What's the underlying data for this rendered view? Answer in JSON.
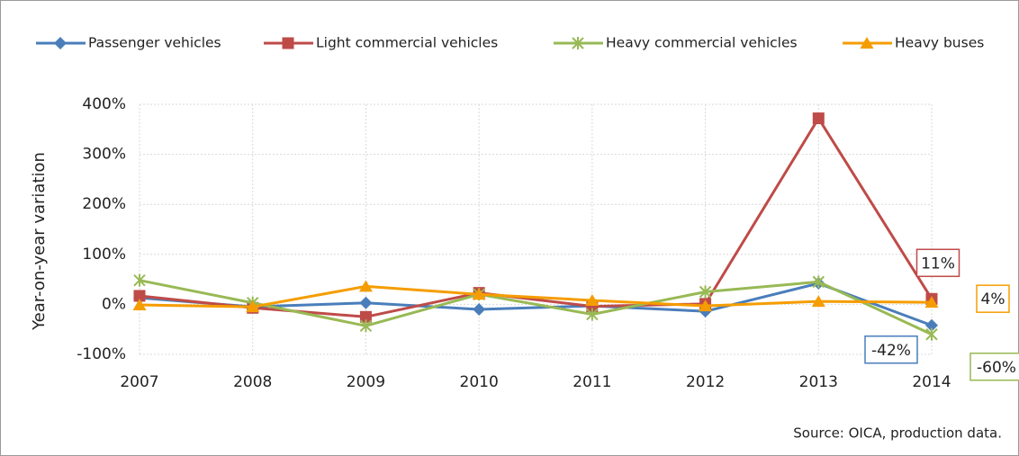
{
  "chart_data": {
    "type": "line",
    "y_label": "Year-on-year variation",
    "source": "Source: OICA, production data.",
    "categories": [
      "2007",
      "2008",
      "2009",
      "2010",
      "2011",
      "2012",
      "2013",
      "2014"
    ],
    "ylim": [
      -100,
      400
    ],
    "yticks": [
      {
        "value": -100,
        "label": "-100%"
      },
      {
        "value": 0,
        "label": "0%"
      },
      {
        "value": 100,
        "label": "100%"
      },
      {
        "value": 200,
        "label": "200%"
      },
      {
        "value": 300,
        "label": "300%"
      },
      {
        "value": 400,
        "label": "400%"
      }
    ],
    "grid": true,
    "legend": "top",
    "series": [
      {
        "name": "Passenger vehicles",
        "color": "#4a7ebb",
        "marker": "diamond",
        "values": [
          13,
          -5,
          3,
          -10,
          -3,
          -14,
          42,
          -42
        ],
        "value_labels": [
          null,
          null,
          null,
          null,
          null,
          null,
          null,
          "-42%"
        ]
      },
      {
        "name": "Light commercial vehicles",
        "color": "#be4b48",
        "marker": "square",
        "values": [
          17,
          -7,
          -25,
          23,
          -4,
          1,
          372,
          11
        ],
        "value_labels": [
          null,
          null,
          null,
          null,
          null,
          null,
          null,
          "11%"
        ]
      },
      {
        "name": "Heavy commercial vehicles",
        "color": "#98b954",
        "marker": "star",
        "values": [
          48,
          3,
          -43,
          20,
          -20,
          25,
          45,
          -60
        ],
        "value_labels": [
          null,
          null,
          null,
          null,
          null,
          null,
          null,
          "-60%"
        ]
      },
      {
        "name": "Heavy buses",
        "color": "#f59d00",
        "marker": "triangle",
        "values": [
          -1,
          -5,
          36,
          20,
          8,
          -3,
          6,
          4
        ],
        "value_labels": [
          null,
          null,
          null,
          null,
          null,
          null,
          null,
          "4%"
        ]
      }
    ]
  }
}
